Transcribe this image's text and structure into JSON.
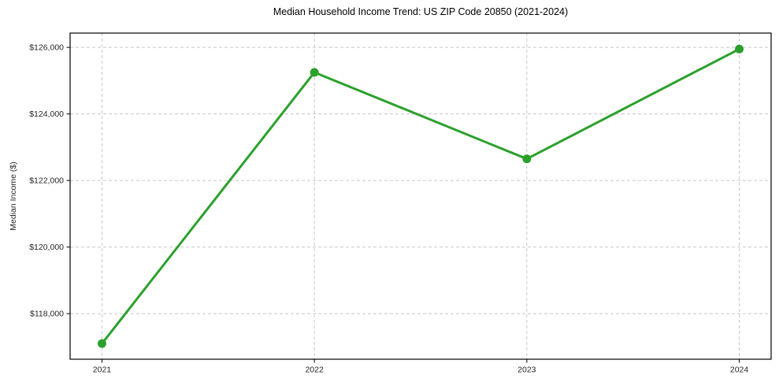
{
  "figure": {
    "background": "#ffffff"
  },
  "chart_data": {
    "type": "line",
    "title": "Median Household Income Trend: US ZIP Code 20850 (2021-2024)",
    "ylabel": "Median Income ($)",
    "categories": [
      "2021",
      "2022",
      "2023",
      "2024"
    ],
    "values": [
      117100,
      125250,
      122650,
      125950
    ],
    "y_ticks": [
      {
        "value": 118000,
        "label": "$118,000"
      },
      {
        "value": 120000,
        "label": "$120,000"
      },
      {
        "value": 122000,
        "label": "$122,000"
      },
      {
        "value": 124000,
        "label": "$124,000"
      },
      {
        "value": 126000,
        "label": "$126,000"
      }
    ],
    "ylim": [
      116630,
      126430
    ],
    "xlim": [
      -0.15,
      3.15
    ],
    "grid": true,
    "grid_style": "dashed",
    "legend": false,
    "colors": {
      "line": "#2ca02c",
      "grid": "#c8c8c8",
      "spine": "#000000",
      "tick_label": "#262626",
      "title": "#000000"
    },
    "marker": "circle",
    "marker_radius": 5.5,
    "line_width": 3
  }
}
